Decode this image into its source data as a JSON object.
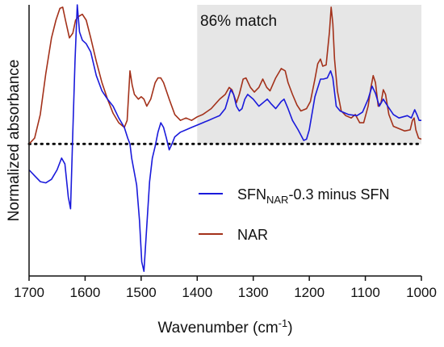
{
  "chart_data": {
    "type": "line",
    "xlabel_main": "Wavenumber (cm",
    "xlabel_sup": "-1",
    "xlabel_tail": ")",
    "ylabel": "Normalized absorbance",
    "xlim": [
      1700,
      1000
    ],
    "x_reversed": true,
    "ylim": [
      -1.12,
      1.18
    ],
    "y_ticks_shown": false,
    "xticks": [
      1700,
      1600,
      1500,
      1400,
      1300,
      1200,
      1100,
      1000
    ],
    "xtick_labels": [
      "1700",
      "1600",
      "1500",
      "1400",
      "1300",
      "1200",
      "1100",
      "1000"
    ],
    "baseline_y": 0,
    "shaded_region": {
      "x_from": 1400,
      "x_to": 1000,
      "color": "#e6e6e6"
    },
    "annotation": "86% match",
    "legend_placement": "right-middle",
    "series": [
      {
        "name_main": "SFN",
        "name_sub": "NAR",
        "name_tail": "-0.3 minus SFN",
        "color": "#1a1adb",
        "points": [
          [
            1700,
            -0.22
          ],
          [
            1690,
            -0.27
          ],
          [
            1680,
            -0.32
          ],
          [
            1670,
            -0.33
          ],
          [
            1660,
            -0.3
          ],
          [
            1650,
            -0.22
          ],
          [
            1642,
            -0.12
          ],
          [
            1636,
            -0.17
          ],
          [
            1630,
            -0.45
          ],
          [
            1626,
            -0.55
          ],
          [
            1622,
            0.1
          ],
          [
            1618,
            0.7
          ],
          [
            1614,
            1.18
          ],
          [
            1610,
            0.95
          ],
          [
            1605,
            0.88
          ],
          [
            1598,
            0.85
          ],
          [
            1590,
            0.78
          ],
          [
            1580,
            0.58
          ],
          [
            1570,
            0.45
          ],
          [
            1560,
            0.38
          ],
          [
            1550,
            0.32
          ],
          [
            1540,
            0.22
          ],
          [
            1530,
            0.14
          ],
          [
            1524,
            0.05
          ],
          [
            1520,
            0.0
          ],
          [
            1517,
            -0.12
          ],
          [
            1513,
            -0.22
          ],
          [
            1508,
            -0.35
          ],
          [
            1503,
            -0.65
          ],
          [
            1499,
            -1.0
          ],
          [
            1495,
            -1.08
          ],
          [
            1490,
            -0.7
          ],
          [
            1485,
            -0.32
          ],
          [
            1480,
            -0.12
          ],
          [
            1475,
            -0.02
          ],
          [
            1470,
            0.1
          ],
          [
            1465,
            0.18
          ],
          [
            1460,
            0.14
          ],
          [
            1455,
            0.05
          ],
          [
            1450,
            -0.05
          ],
          [
            1445,
            0.0
          ],
          [
            1440,
            0.06
          ],
          [
            1430,
            0.1
          ],
          [
            1420,
            0.12
          ],
          [
            1410,
            0.14
          ],
          [
            1400,
            0.16
          ],
          [
            1390,
            0.18
          ],
          [
            1380,
            0.2
          ],
          [
            1370,
            0.22
          ],
          [
            1360,
            0.24
          ],
          [
            1350,
            0.3
          ],
          [
            1345,
            0.38
          ],
          [
            1340,
            0.46
          ],
          [
            1335,
            0.42
          ],
          [
            1330,
            0.32
          ],
          [
            1325,
            0.28
          ],
          [
            1320,
            0.3
          ],
          [
            1315,
            0.38
          ],
          [
            1310,
            0.42
          ],
          [
            1300,
            0.38
          ],
          [
            1290,
            0.32
          ],
          [
            1280,
            0.36
          ],
          [
            1275,
            0.38
          ],
          [
            1268,
            0.34
          ],
          [
            1260,
            0.3
          ],
          [
            1250,
            0.36
          ],
          [
            1245,
            0.38
          ],
          [
            1238,
            0.3
          ],
          [
            1230,
            0.2
          ],
          [
            1220,
            0.12
          ],
          [
            1210,
            0.03
          ],
          [
            1205,
            0.04
          ],
          [
            1200,
            0.12
          ],
          [
            1190,
            0.4
          ],
          [
            1180,
            0.55
          ],
          [
            1175,
            0.55
          ],
          [
            1168,
            0.56
          ],
          [
            1162,
            0.62
          ],
          [
            1158,
            0.56
          ],
          [
            1152,
            0.32
          ],
          [
            1145,
            0.28
          ],
          [
            1130,
            0.25
          ],
          [
            1115,
            0.24
          ],
          [
            1105,
            0.27
          ],
          [
            1095,
            0.38
          ],
          [
            1088,
            0.49
          ],
          [
            1082,
            0.43
          ],
          [
            1075,
            0.32
          ],
          [
            1068,
            0.38
          ],
          [
            1060,
            0.32
          ],
          [
            1050,
            0.25
          ],
          [
            1040,
            0.22
          ],
          [
            1025,
            0.24
          ],
          [
            1018,
            0.22
          ],
          [
            1012,
            0.29
          ],
          [
            1008,
            0.25
          ],
          [
            1004,
            0.2
          ],
          [
            1000,
            0.2
          ]
        ]
      },
      {
        "name": "NAR",
        "color": "#a3311a",
        "points": [
          [
            1700,
            0.0
          ],
          [
            1690,
            0.05
          ],
          [
            1680,
            0.25
          ],
          [
            1670,
            0.6
          ],
          [
            1660,
            0.9
          ],
          [
            1652,
            1.05
          ],
          [
            1645,
            1.15
          ],
          [
            1640,
            1.16
          ],
          [
            1635,
            1.05
          ],
          [
            1628,
            0.9
          ],
          [
            1622,
            0.94
          ],
          [
            1617,
            1.05
          ],
          [
            1612,
            1.08
          ],
          [
            1605,
            1.1
          ],
          [
            1598,
            1.05
          ],
          [
            1590,
            0.9
          ],
          [
            1580,
            0.7
          ],
          [
            1570,
            0.52
          ],
          [
            1560,
            0.38
          ],
          [
            1550,
            0.26
          ],
          [
            1540,
            0.18
          ],
          [
            1530,
            0.14
          ],
          [
            1525,
            0.2
          ],
          [
            1520,
            0.62
          ],
          [
            1516,
            0.5
          ],
          [
            1512,
            0.42
          ],
          [
            1505,
            0.38
          ],
          [
            1500,
            0.4
          ],
          [
            1495,
            0.38
          ],
          [
            1490,
            0.32
          ],
          [
            1483,
            0.38
          ],
          [
            1475,
            0.52
          ],
          [
            1470,
            0.56
          ],
          [
            1465,
            0.56
          ],
          [
            1460,
            0.52
          ],
          [
            1450,
            0.38
          ],
          [
            1440,
            0.25
          ],
          [
            1430,
            0.2
          ],
          [
            1420,
            0.22
          ],
          [
            1410,
            0.2
          ],
          [
            1400,
            0.23
          ],
          [
            1390,
            0.25
          ],
          [
            1375,
            0.3
          ],
          [
            1360,
            0.38
          ],
          [
            1350,
            0.42
          ],
          [
            1343,
            0.48
          ],
          [
            1338,
            0.46
          ],
          [
            1330,
            0.35
          ],
          [
            1325,
            0.42
          ],
          [
            1318,
            0.55
          ],
          [
            1313,
            0.56
          ],
          [
            1305,
            0.48
          ],
          [
            1298,
            0.44
          ],
          [
            1290,
            0.48
          ],
          [
            1283,
            0.55
          ],
          [
            1276,
            0.48
          ],
          [
            1270,
            0.45
          ],
          [
            1260,
            0.56
          ],
          [
            1250,
            0.64
          ],
          [
            1243,
            0.62
          ],
          [
            1238,
            0.52
          ],
          [
            1230,
            0.42
          ],
          [
            1222,
            0.33
          ],
          [
            1215,
            0.28
          ],
          [
            1205,
            0.3
          ],
          [
            1198,
            0.36
          ],
          [
            1190,
            0.55
          ],
          [
            1185,
            0.68
          ],
          [
            1180,
            0.72
          ],
          [
            1176,
            0.66
          ],
          [
            1170,
            0.67
          ],
          [
            1164,
            0.95
          ],
          [
            1161,
            1.16
          ],
          [
            1158,
            1.02
          ],
          [
            1155,
            0.72
          ],
          [
            1150,
            0.45
          ],
          [
            1143,
            0.28
          ],
          [
            1135,
            0.24
          ],
          [
            1125,
            0.22
          ],
          [
            1118,
            0.25
          ],
          [
            1110,
            0.18
          ],
          [
            1103,
            0.18
          ],
          [
            1095,
            0.32
          ],
          [
            1090,
            0.48
          ],
          [
            1086,
            0.58
          ],
          [
            1082,
            0.52
          ],
          [
            1077,
            0.32
          ],
          [
            1072,
            0.35
          ],
          [
            1068,
            0.46
          ],
          [
            1064,
            0.42
          ],
          [
            1058,
            0.25
          ],
          [
            1050,
            0.15
          ],
          [
            1040,
            0.13
          ],
          [
            1030,
            0.11
          ],
          [
            1020,
            0.12
          ],
          [
            1016,
            0.2
          ],
          [
            1013,
            0.22
          ],
          [
            1010,
            0.12
          ],
          [
            1005,
            0.05
          ],
          [
            1000,
            0.04
          ]
        ]
      }
    ]
  }
}
